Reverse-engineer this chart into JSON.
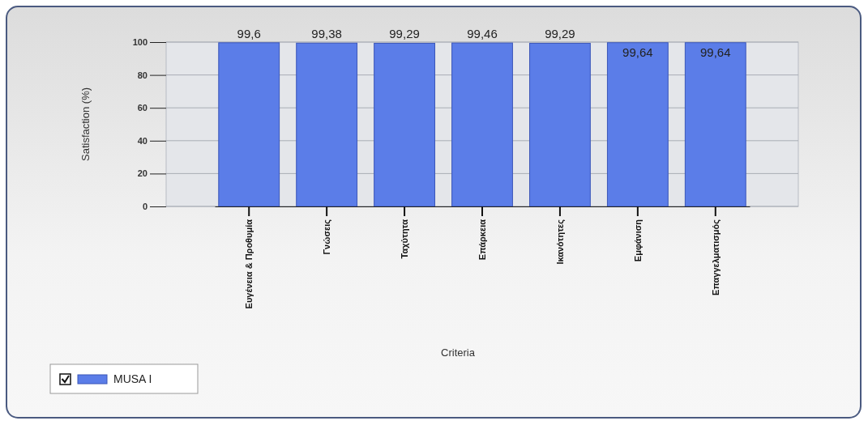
{
  "chart_data": {
    "type": "bar",
    "categories": [
      "Ευγένεια & Προθυμία",
      "Γνώσεις",
      "Ταχύτητα",
      "Επάρκεια",
      "Ικανότητες",
      "Εμφάνιση",
      "Επαγγελματισμός"
    ],
    "series": [
      {
        "name": "MUSA I",
        "color": "#5b7de8",
        "values": [
          99.6,
          99.38,
          99.29,
          99.46,
          99.29,
          99.64,
          99.64
        ],
        "value_labels": [
          "99,6",
          "99,38",
          "99,29",
          "99,46",
          "99,29",
          "99,64",
          "99,64"
        ]
      }
    ],
    "xlabel": "Criteria",
    "ylabel": "Satisfaction (%)",
    "ylim": [
      0,
      100
    ],
    "yticks": [
      0,
      20,
      40,
      60,
      80,
      100
    ],
    "grid": "y",
    "legend": "bottom left"
  }
}
